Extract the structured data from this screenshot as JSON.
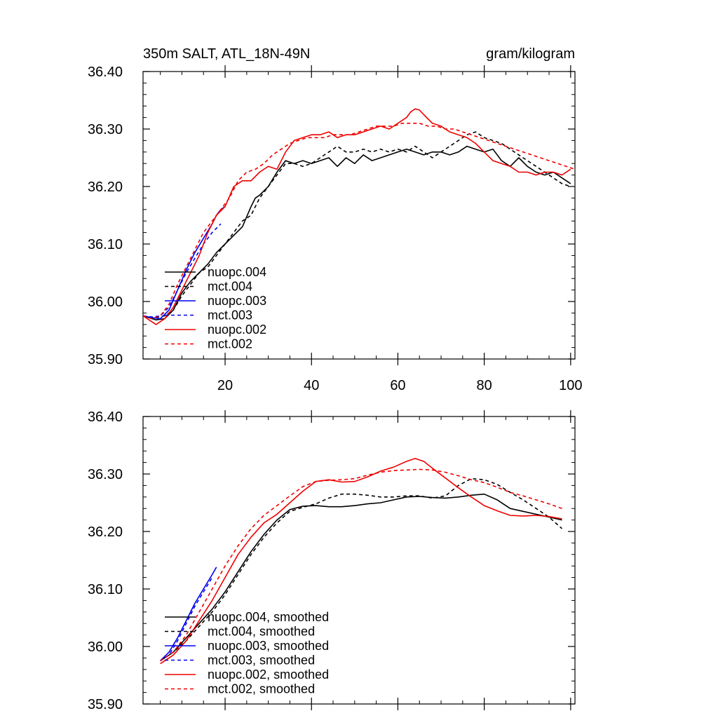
{
  "chart_data": [
    {
      "type": "line",
      "title": "350m SALT, ATL_18N-49N",
      "units": "gram/kilogram",
      "xlim": [
        1,
        101
      ],
      "ylim": [
        35.9,
        36.4
      ],
      "x_ticks": [
        20,
        40,
        60,
        80,
        100
      ],
      "x_tick_labels": [
        "20",
        "40",
        "60",
        "80",
        "100"
      ],
      "y_ticks": [
        35.9,
        36.0,
        36.1,
        36.2,
        36.3,
        36.4
      ],
      "y_tick_labels": [
        "35.90",
        "36.00",
        "36.10",
        "36.20",
        "36.30",
        "36.40"
      ],
      "legend_position": "bottom-left",
      "series": [
        {
          "name": "nuopc.004",
          "color": "#000000",
          "dash": "solid",
          "x": [
            1,
            4,
            6,
            8,
            10,
            12,
            14,
            16,
            18,
            20,
            22,
            24,
            26,
            27,
            28,
            30,
            32,
            34,
            36,
            38,
            40,
            42,
            44,
            46,
            48,
            50,
            52,
            54,
            56,
            58,
            60,
            62,
            64,
            66,
            68,
            70,
            72,
            74,
            76,
            78,
            80,
            82,
            84,
            86,
            88,
            90,
            92,
            94,
            96,
            98,
            100
          ],
          "y": [
            35.975,
            35.968,
            35.97,
            35.985,
            36.015,
            36.035,
            36.05,
            36.065,
            36.085,
            36.1,
            36.115,
            36.13,
            36.165,
            36.18,
            36.185,
            36.2,
            36.225,
            36.245,
            36.24,
            36.245,
            36.24,
            36.245,
            36.25,
            36.235,
            36.25,
            36.24,
            36.255,
            36.245,
            36.25,
            36.255,
            36.26,
            36.265,
            36.26,
            36.255,
            36.26,
            36.26,
            36.255,
            36.26,
            36.27,
            36.265,
            36.26,
            36.265,
            36.245,
            36.235,
            36.25,
            36.235,
            36.225,
            36.22,
            36.225,
            36.215,
            36.205
          ]
        },
        {
          "name": "mct.004",
          "color": "#000000",
          "dash": "dashed",
          "x": [
            1,
            4,
            6,
            8,
            10,
            12,
            14,
            16,
            18,
            20,
            22,
            24,
            26,
            28,
            30,
            32,
            34,
            36,
            38,
            40,
            42,
            44,
            46,
            48,
            50,
            52,
            54,
            56,
            58,
            60,
            62,
            64,
            66,
            68,
            70,
            72,
            74,
            76,
            78,
            80,
            82,
            84,
            86,
            88,
            90,
            92,
            94,
            96,
            98,
            100
          ],
          "y": [
            35.975,
            35.972,
            35.975,
            35.985,
            36.01,
            36.03,
            36.05,
            36.06,
            36.08,
            36.1,
            36.12,
            36.14,
            36.15,
            36.18,
            36.2,
            36.22,
            36.24,
            36.24,
            36.235,
            36.24,
            36.25,
            36.26,
            36.27,
            36.26,
            36.26,
            36.265,
            36.26,
            36.265,
            36.26,
            36.265,
            36.26,
            36.27,
            36.26,
            36.25,
            36.26,
            36.27,
            36.28,
            36.29,
            36.295,
            36.285,
            36.28,
            36.275,
            36.265,
            36.255,
            36.245,
            36.235,
            36.225,
            36.215,
            36.205,
            36.2
          ]
        },
        {
          "name": "nuopc.003",
          "color": "#0000ee",
          "dash": "solid",
          "x": [
            1,
            3,
            5,
            7,
            9,
            11,
            13,
            15,
            17,
            18,
            19,
            20
          ],
          "y": [
            35.975,
            35.972,
            35.97,
            35.985,
            36.02,
            36.055,
            36.085,
            36.11,
            36.135,
            36.15,
            36.16,
            36.165
          ]
        },
        {
          "name": "mct.003",
          "color": "#0000ee",
          "dash": "dashed",
          "x": [
            1,
            3,
            5,
            7,
            9,
            11,
            13,
            15,
            17,
            19
          ],
          "y": [
            35.975,
            35.973,
            35.975,
            35.99,
            36.02,
            36.05,
            36.075,
            36.1,
            36.12,
            36.135
          ]
        },
        {
          "name": "nuopc.002",
          "color": "#ee0000",
          "dash": "solid",
          "x": [
            1,
            3,
            4,
            6,
            8,
            10,
            12,
            14,
            16,
            18,
            20,
            22,
            24,
            26,
            28,
            30,
            32,
            34,
            36,
            38,
            40,
            42,
            44,
            46,
            48,
            50,
            52,
            54,
            56,
            58,
            60,
            62,
            63,
            64,
            65,
            66,
            68,
            70,
            72,
            74,
            76,
            78,
            80,
            82,
            84,
            86,
            88,
            90,
            92,
            94,
            96,
            98,
            100
          ],
          "y": [
            35.975,
            35.965,
            35.96,
            35.97,
            35.99,
            36.02,
            36.05,
            36.08,
            36.12,
            36.15,
            36.165,
            36.2,
            36.21,
            36.21,
            36.225,
            36.235,
            36.23,
            36.26,
            36.28,
            36.285,
            36.29,
            36.29,
            36.295,
            36.285,
            36.29,
            36.29,
            36.295,
            36.3,
            36.305,
            36.3,
            36.31,
            36.32,
            36.33,
            36.335,
            36.333,
            36.325,
            36.31,
            36.305,
            36.295,
            36.29,
            36.285,
            36.275,
            36.26,
            36.245,
            36.24,
            36.235,
            36.225,
            36.225,
            36.22,
            36.225,
            36.225,
            36.22,
            36.23
          ]
        },
        {
          "name": "mct.002",
          "color": "#ee0000",
          "dash": "dashed",
          "x": [
            1,
            3,
            5,
            7,
            9,
            11,
            13,
            15,
            17,
            19,
            21,
            23,
            25,
            27,
            29,
            31,
            33,
            35,
            37,
            39,
            41,
            43,
            45,
            47,
            49,
            51,
            53,
            55,
            57,
            59,
            61,
            63,
            65,
            67,
            69,
            71,
            73,
            75,
            77,
            79,
            81,
            83,
            85,
            87,
            89,
            91,
            93,
            95,
            97,
            99,
            101
          ],
          "y": [
            35.975,
            35.97,
            35.975,
            35.995,
            36.03,
            36.06,
            36.09,
            36.12,
            36.14,
            36.16,
            36.18,
            36.21,
            36.225,
            36.23,
            36.24,
            36.255,
            36.265,
            36.275,
            36.28,
            36.285,
            36.285,
            36.285,
            36.29,
            36.29,
            36.29,
            36.295,
            36.3,
            36.305,
            36.305,
            36.305,
            36.31,
            36.31,
            36.31,
            36.305,
            36.305,
            36.3,
            36.3,
            36.295,
            36.29,
            36.285,
            36.28,
            36.275,
            36.27,
            36.265,
            36.26,
            36.255,
            36.25,
            36.245,
            36.24,
            36.235,
            36.23
          ]
        }
      ]
    },
    {
      "type": "line",
      "xlim": [
        1,
        101
      ],
      "ylim": [
        35.9,
        36.4
      ],
      "x_ticks": [
        20,
        40,
        60,
        80,
        100
      ],
      "y_ticks": [
        35.9,
        36.0,
        36.1,
        36.2,
        36.3,
        36.4
      ],
      "y_tick_labels": [
        "35.90",
        "36.00",
        "36.10",
        "36.20",
        "36.30",
        "36.40"
      ],
      "legend_position": "bottom-left",
      "series": [
        {
          "name": "nuopc.004, smoothed",
          "color": "#000000",
          "dash": "solid",
          "x": [
            5,
            8,
            11,
            14,
            17,
            20,
            23,
            26,
            29,
            32,
            35,
            38,
            41,
            44,
            47,
            50,
            53,
            56,
            59,
            62,
            65,
            68,
            71,
            74,
            77,
            80,
            83,
            86,
            89,
            92,
            95,
            98
          ],
          "y": [
            35.975,
            35.99,
            36.015,
            36.04,
            36.065,
            36.095,
            36.13,
            36.165,
            36.195,
            36.22,
            36.238,
            36.244,
            36.245,
            36.243,
            36.243,
            36.245,
            36.248,
            36.25,
            36.255,
            36.26,
            36.261,
            36.259,
            36.258,
            36.26,
            36.263,
            36.265,
            36.255,
            36.24,
            36.235,
            36.23,
            36.225,
            36.22
          ]
        },
        {
          "name": "mct.004, smoothed",
          "color": "#000000",
          "dash": "dashed",
          "x": [
            5,
            8,
            11,
            14,
            17,
            20,
            23,
            26,
            29,
            32,
            35,
            38,
            41,
            44,
            47,
            50,
            53,
            56,
            59,
            62,
            65,
            68,
            71,
            74,
            77,
            80,
            83,
            86,
            89,
            92,
            95,
            98
          ],
          "y": [
            35.975,
            35.99,
            36.01,
            36.035,
            36.06,
            36.09,
            36.125,
            36.16,
            36.19,
            36.215,
            36.235,
            36.242,
            36.248,
            36.258,
            36.265,
            36.265,
            36.263,
            36.26,
            36.26,
            36.262,
            36.262,
            36.258,
            36.262,
            36.28,
            36.292,
            36.29,
            36.282,
            36.268,
            36.255,
            36.24,
            36.225,
            36.205
          ]
        },
        {
          "name": "nuopc.003, smoothed",
          "color": "#0000ee",
          "dash": "solid",
          "x": [
            5,
            7,
            9,
            11,
            13,
            15,
            17,
            18
          ],
          "y": [
            35.975,
            35.99,
            36.015,
            36.045,
            36.075,
            36.1,
            36.125,
            36.138
          ]
        },
        {
          "name": "mct.003, smoothed",
          "color": "#0000ee",
          "dash": "dashed",
          "x": [
            5,
            7,
            9,
            11,
            13,
            15,
            17
          ],
          "y": [
            35.975,
            35.985,
            36.01,
            36.04,
            36.07,
            36.095,
            36.12
          ]
        },
        {
          "name": "nuopc.002, smoothed",
          "color": "#ee0000",
          "dash": "solid",
          "x": [
            5,
            8,
            11,
            14,
            17,
            20,
            23,
            26,
            29,
            32,
            35,
            38,
            41,
            44,
            47,
            50,
            53,
            56,
            59,
            62,
            64,
            66,
            68,
            71,
            74,
            77,
            80,
            83,
            86,
            89,
            92,
            95,
            98
          ],
          "y": [
            35.97,
            35.985,
            36.01,
            36.045,
            36.08,
            36.12,
            36.16,
            36.19,
            36.215,
            36.23,
            36.25,
            36.27,
            36.287,
            36.29,
            36.286,
            36.287,
            36.295,
            36.305,
            36.312,
            36.322,
            36.327,
            36.322,
            36.31,
            36.293,
            36.276,
            36.26,
            36.245,
            36.236,
            36.228,
            36.227,
            36.228,
            36.226,
            36.222
          ]
        },
        {
          "name": "mct.002, smoothed",
          "color": "#ee0000",
          "dash": "dashed",
          "x": [
            5,
            8,
            11,
            14,
            17,
            20,
            23,
            26,
            29,
            32,
            35,
            38,
            41,
            44,
            47,
            50,
            53,
            56,
            59,
            62,
            65,
            68,
            71,
            74,
            77,
            80,
            83,
            86,
            89,
            92,
            95,
            98
          ],
          "y": [
            35.975,
            35.99,
            36.02,
            36.06,
            36.1,
            36.14,
            36.175,
            36.205,
            36.228,
            36.245,
            36.262,
            36.278,
            36.287,
            36.289,
            36.29,
            36.292,
            36.298,
            36.303,
            36.306,
            36.307,
            36.308,
            36.307,
            36.303,
            36.297,
            36.29,
            36.285,
            36.277,
            36.268,
            36.262,
            36.255,
            36.248,
            36.24
          ]
        }
      ]
    }
  ]
}
